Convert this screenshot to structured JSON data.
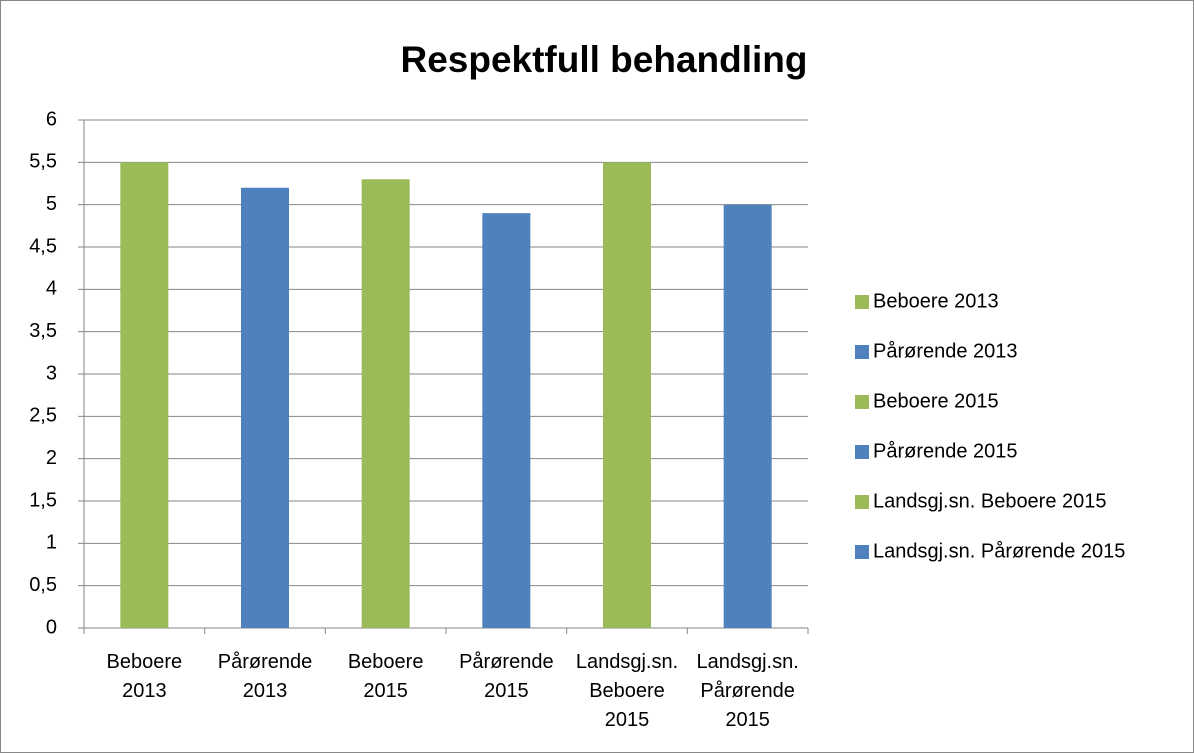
{
  "chart_data": {
    "type": "bar",
    "title": "Respektfull behandling",
    "categories": [
      "Beboere 2013",
      "Pårørende 2013",
      "Beboere 2015",
      "Pårørende 2015",
      "Landsgj.sn. Beboere 2015",
      "Landsgj.sn. Pårørende 2015"
    ],
    "values": [
      5.5,
      5.2,
      5.3,
      4.9,
      5.5,
      5.0
    ],
    "colors": [
      "#9bbb59",
      "#4f81bd",
      "#9bbb59",
      "#4f81bd",
      "#9bbb59",
      "#4f81bd"
    ],
    "ylim": [
      0,
      6
    ],
    "yticks": [
      0,
      {
        "value": 0.5,
        "label": "0,5"
      },
      1,
      {
        "value": 1.5,
        "label": "1,5"
      },
      2,
      {
        "value": 2.5,
        "label": "2,5"
      },
      3,
      {
        "value": 3.5,
        "label": "3,5"
      },
      4,
      {
        "value": 4.5,
        "label": "4,5"
      },
      5,
      {
        "value": 5.5,
        "label": "5,5"
      },
      6
    ],
    "grid": true,
    "legend": "right"
  }
}
